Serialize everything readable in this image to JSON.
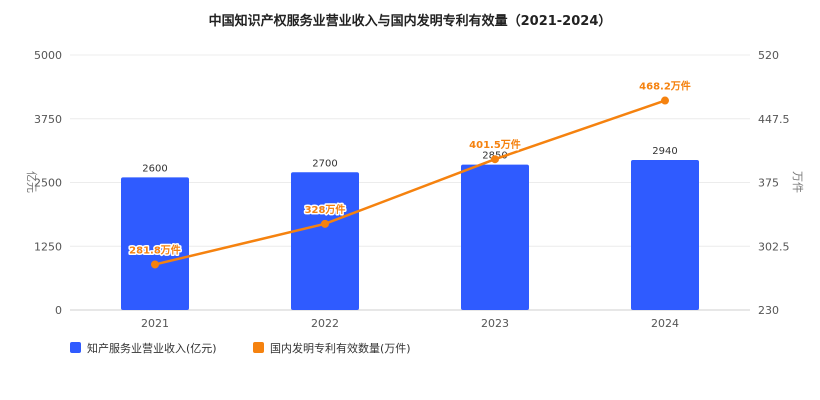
{
  "chart_data": {
    "type": "bar",
    "title": "中国知识产权服务业营业收入与国内发明专利有效量（2021-2024）",
    "categories": [
      "2021",
      "2022",
      "2023",
      "2024"
    ],
    "series": [
      {
        "name": "知产服务业营业收入(亿元)",
        "type": "bar",
        "axis": "left",
        "color": "#2f5bff",
        "values": [
          2600,
          2700,
          2850,
          2940
        ],
        "labels": [
          "2600",
          "2700",
          "2850",
          "2940"
        ]
      },
      {
        "name": "国内发明专利有效数量(万件)",
        "type": "line",
        "axis": "right",
        "color": "#f5820f",
        "values": [
          281.8,
          328,
          401.5,
          468.2
        ],
        "labels": [
          "281.8万件",
          "328万件",
          "401.5万件",
          "468.2万件"
        ]
      }
    ],
    "y_left": {
      "label": "亿元",
      "lim": [
        0,
        5000
      ],
      "ticks": [
        "0",
        "1250",
        "2500",
        "3750",
        "5000"
      ]
    },
    "y_right": {
      "label": "万件",
      "lim": [
        230,
        520
      ],
      "ticks": [
        "230",
        "302.5",
        "375",
        "447.5",
        "520"
      ]
    },
    "grid": true,
    "legend_position": "bottom-left"
  }
}
